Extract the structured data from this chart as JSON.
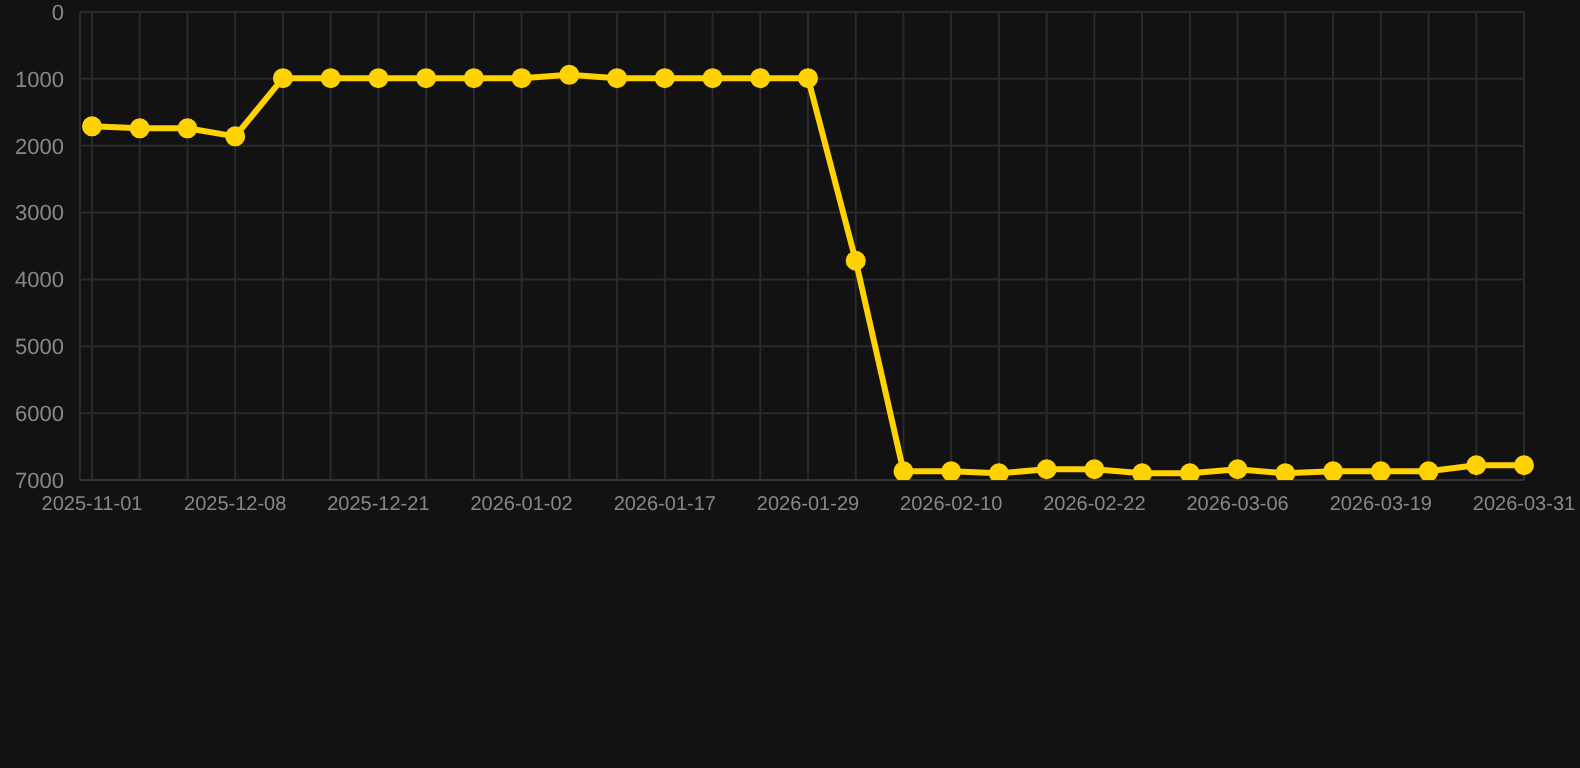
{
  "chart_data": {
    "type": "line",
    "categories": [
      "2025-11-01",
      null,
      null,
      "2025-12-08",
      null,
      null,
      "2025-12-21",
      null,
      null,
      "2026-01-02",
      null,
      null,
      "2026-01-17",
      null,
      null,
      "2026-01-29",
      null,
      null,
      "2026-02-10",
      null,
      null,
      "2026-02-22",
      null,
      null,
      "2026-03-06",
      null,
      null,
      "2026-03-19",
      null,
      null,
      "2026-03-31"
    ],
    "series": [
      {
        "color": "#ffd200",
        "values": [
          1710,
          1740,
          1740,
          1860,
          990,
          990,
          990,
          990,
          990,
          990,
          940,
          990,
          990,
          990,
          990,
          990,
          3720,
          6870,
          6870,
          6900,
          6840,
          6840,
          6900,
          6900,
          6840,
          6900,
          6870,
          6870,
          6870,
          6780,
          6780
        ]
      }
    ],
    "ylim": [
      7000,
      0
    ],
    "yticks": [
      0,
      1000,
      2000,
      3000,
      4000,
      5000,
      6000,
      7000
    ],
    "grid": true,
    "marker": "circle",
    "line_style": "solid"
  }
}
